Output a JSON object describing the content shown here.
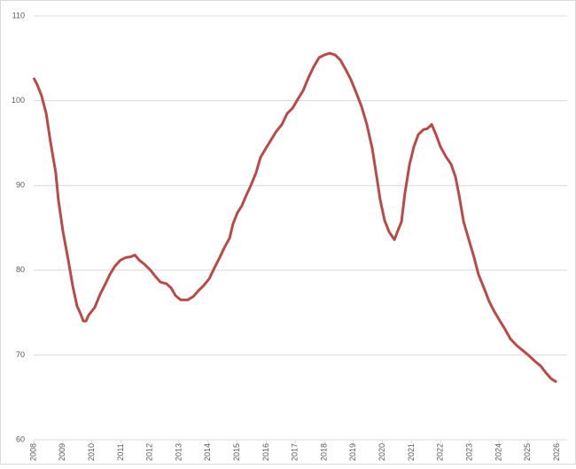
{
  "chart_data": {
    "type": "line",
    "x": [
      2008.0,
      2008.12,
      2008.27,
      2008.43,
      2008.58,
      2008.76,
      2008.85,
      2009.01,
      2009.19,
      2009.34,
      2009.49,
      2009.62,
      2009.71,
      2009.8,
      2009.89,
      2010.1,
      2010.29,
      2010.47,
      2010.62,
      2010.8,
      2010.99,
      2011.17,
      2011.35,
      2011.48,
      2011.63,
      2011.81,
      2012.02,
      2012.18,
      2012.36,
      2012.57,
      2012.73,
      2012.88,
      2013.06,
      2013.3,
      2013.49,
      2013.67,
      2013.85,
      2014.04,
      2014.22,
      2014.4,
      2014.55,
      2014.74,
      2014.86,
      2015.01,
      2015.16,
      2015.32,
      2015.47,
      2015.65,
      2015.8,
      2015.99,
      2016.17,
      2016.35,
      2016.54,
      2016.72,
      2016.9,
      2017.09,
      2017.27,
      2017.45,
      2017.63,
      2017.82,
      2018.0,
      2018.18,
      2018.37,
      2018.55,
      2018.73,
      2018.91,
      2019.1,
      2019.28,
      2019.46,
      2019.65,
      2019.8,
      2019.92,
      2020.07,
      2020.23,
      2020.41,
      2020.53,
      2020.65,
      2020.77,
      2020.93,
      2021.08,
      2021.23,
      2021.41,
      2021.54,
      2021.69,
      2021.84,
      2021.99,
      2022.18,
      2022.36,
      2022.51,
      2022.63,
      2022.79,
      2022.97,
      2023.15,
      2023.3,
      2023.49,
      2023.67,
      2023.85,
      2024.04,
      2024.22,
      2024.4,
      2024.62,
      2024.8,
      2025.01,
      2025.23,
      2025.44,
      2025.62,
      2025.8,
      2025.99
    ],
    "series": [
      {
        "color": "#b94a48",
        "values": [
          102.7,
          101.9,
          100.6,
          98.5,
          95.1,
          91.5,
          88.3,
          84.5,
          81.2,
          78.2,
          75.8,
          74.8,
          74.0,
          74.0,
          74.7,
          75.6,
          77.2,
          78.4,
          79.5,
          80.5,
          81.2,
          81.5,
          81.6,
          81.8,
          81.2,
          80.7,
          80.0,
          79.3,
          78.6,
          78.4,
          77.9,
          77.0,
          76.5,
          76.5,
          76.9,
          77.6,
          78.2,
          79.0,
          80.3,
          81.5,
          82.6,
          83.8,
          85.5,
          86.8,
          87.6,
          88.9,
          90.0,
          91.5,
          93.3,
          94.4,
          95.4,
          96.4,
          97.2,
          98.5,
          99.1,
          100.2,
          101.2,
          102.7,
          104.0,
          105.1,
          105.4,
          105.6,
          105.4,
          104.8,
          103.7,
          102.5,
          100.9,
          99.3,
          97.2,
          94.3,
          91.0,
          88.3,
          85.9,
          84.5,
          83.6,
          84.7,
          85.7,
          89.1,
          92.5,
          94.6,
          96.0,
          96.6,
          96.7,
          97.2,
          96.0,
          94.6,
          93.4,
          92.5,
          91.0,
          88.9,
          85.7,
          83.6,
          81.5,
          79.5,
          77.9,
          76.3,
          75.1,
          74.0,
          73.0,
          71.9,
          71.1,
          70.6,
          70.0,
          69.3,
          68.7,
          67.9,
          67.2,
          66.8
        ]
      }
    ],
    "xlim": [
      2008,
      2026.35
    ],
    "xticks": [
      2008,
      2009,
      2010,
      2011,
      2012,
      2013,
      2014,
      2015,
      2016,
      2017,
      2018,
      2019,
      2020,
      2021,
      2022,
      2023,
      2024,
      2025,
      2026
    ],
    "ylim": [
      60,
      110
    ],
    "yticks": [
      60,
      70,
      80,
      90,
      100,
      110
    ],
    "grid": true
  }
}
